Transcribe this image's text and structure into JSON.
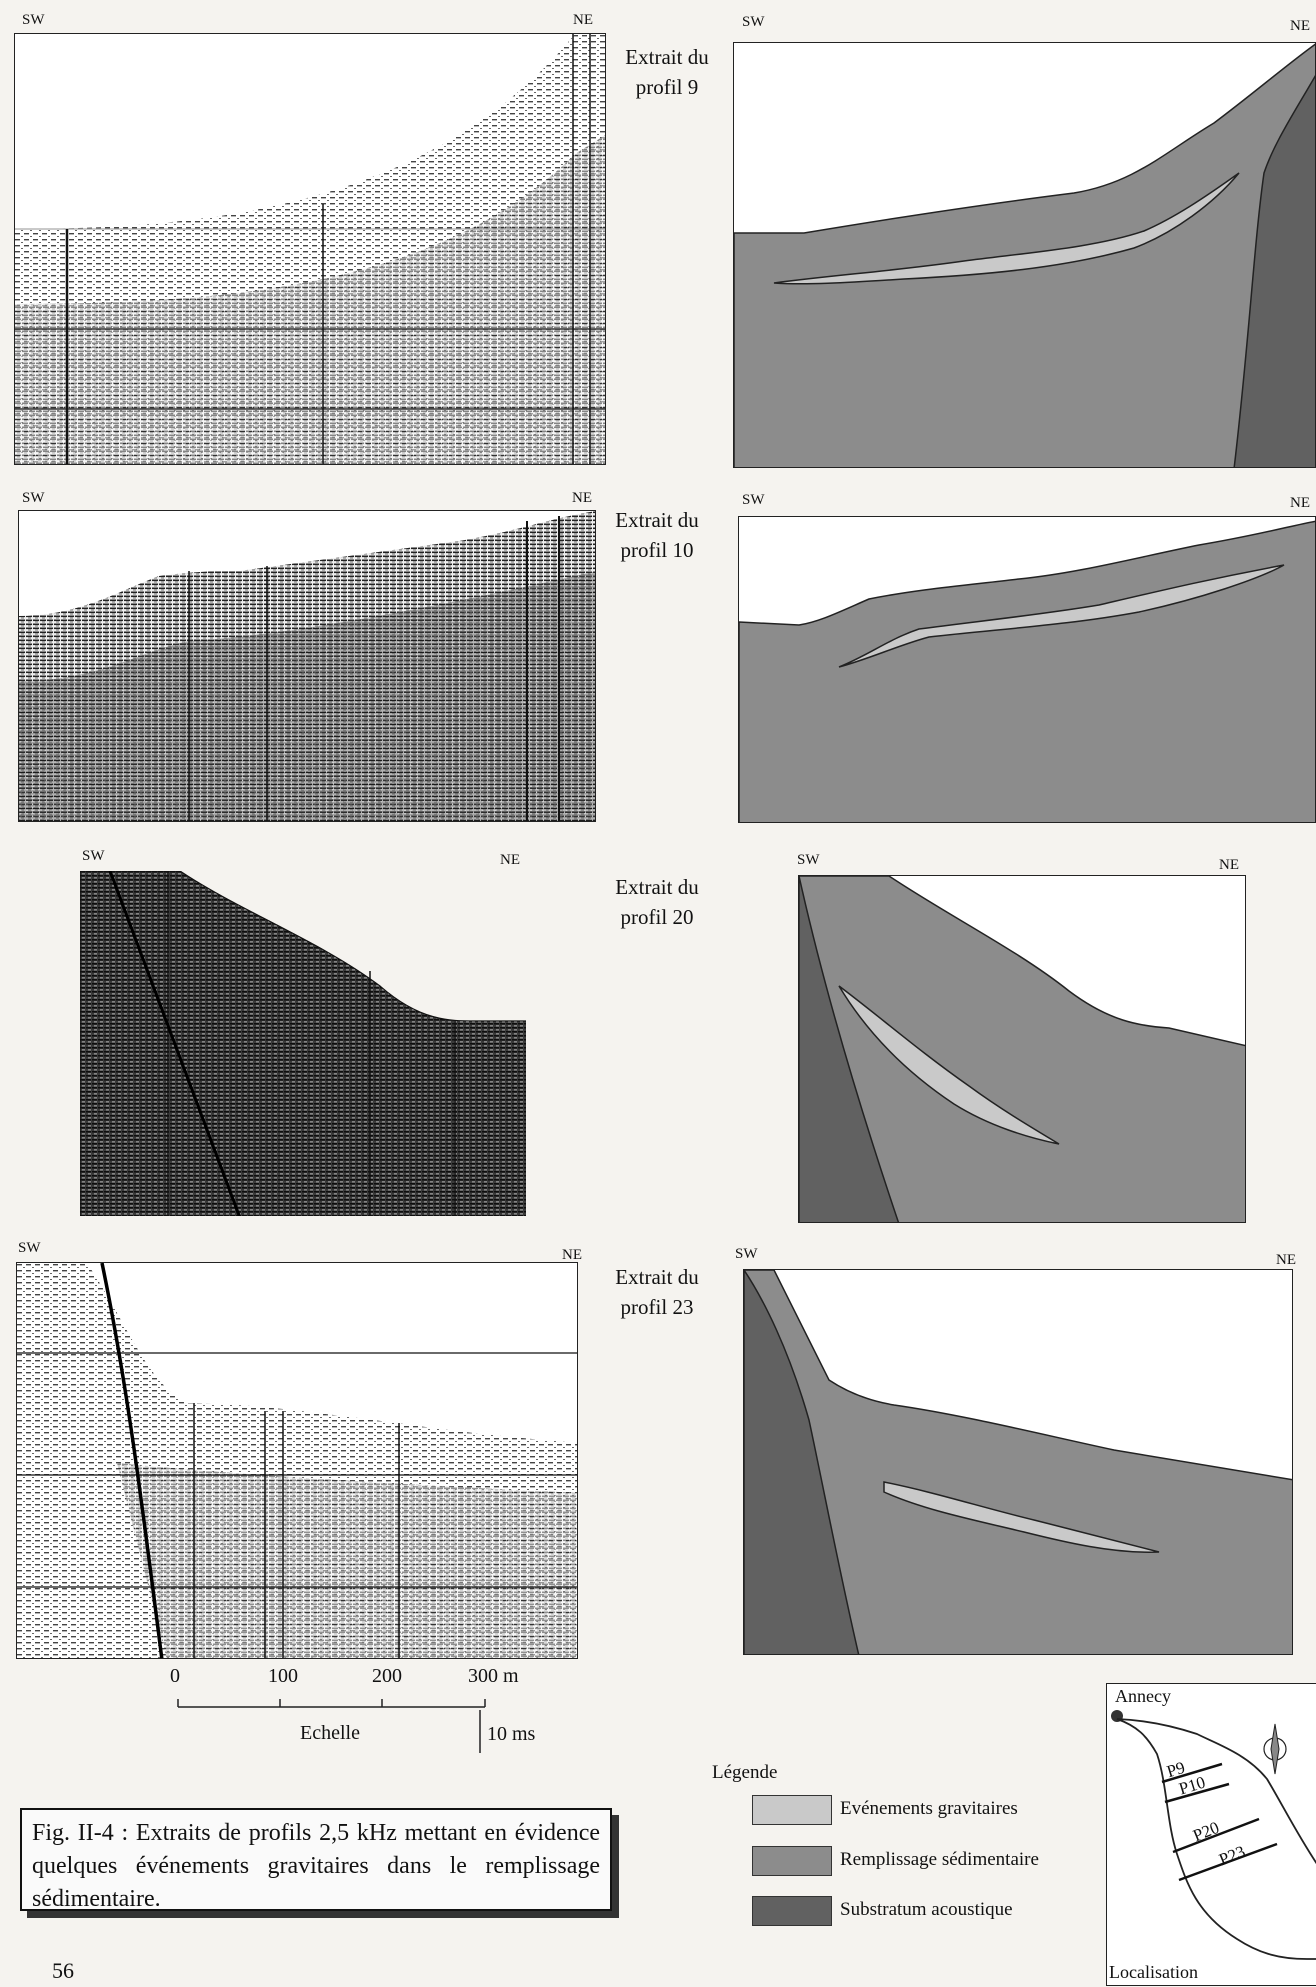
{
  "figures": [
    {
      "id": "p9",
      "caption": [
        "Extrait du",
        "profil 9"
      ],
      "left_sw": "SW",
      "left_ne": "NE",
      "right_sw": "SW",
      "right_ne": "NE"
    },
    {
      "id": "p10",
      "caption": [
        "Extrait du",
        "profil 10"
      ],
      "left_sw": "SW",
      "left_ne": "NE",
      "right_sw": "SW",
      "right_ne": "NE"
    },
    {
      "id": "p20",
      "caption": [
        "Extrait du",
        "profil 20"
      ],
      "left_sw": "SW",
      "left_ne": "NE",
      "right_sw": "SW",
      "right_ne": "NE"
    },
    {
      "id": "p23",
      "caption": [
        "Extrait du",
        "profil 23"
      ],
      "left_sw": "SW",
      "left_ne": "NE",
      "right_sw": "SW",
      "right_ne": "NE"
    }
  ],
  "scale": {
    "ticks": [
      "0",
      "100",
      "200",
      "300 m"
    ],
    "label": "Echelle",
    "vertical": "10 ms"
  },
  "figure_caption": "Fig. II-4 : Extraits de profils 2,5 kHz mettant en évidence quelques événements gravitaires dans le remplissage sédimentaire.",
  "legend": {
    "title": "Légende",
    "items": [
      {
        "label": "Evénements gravitaires",
        "color": "#c9c9c9"
      },
      {
        "label": "Remplissage sédimentaire",
        "color": "#8c8c8c"
      },
      {
        "label": "Substratum acoustique",
        "color": "#616161"
      }
    ]
  },
  "map": {
    "city": "Annecy",
    "profiles": [
      "P9",
      "P10",
      "P20",
      "P23"
    ],
    "label": "Localisation"
  },
  "page_number": "56"
}
